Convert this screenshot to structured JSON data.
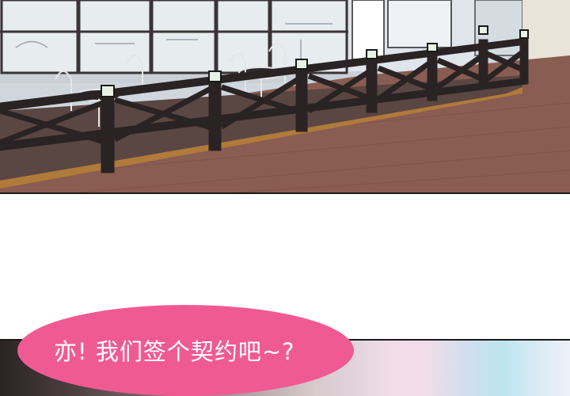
{
  "speech_bubble": {
    "text": "亦! 我们签个契约吧~?"
  },
  "colors": {
    "bubble": "#f05a92",
    "bubble_text": "#ffffff",
    "panel_border": "#1a1a1a",
    "pavement": "#8a5d52",
    "fence": "#2a2324",
    "deck_edge": "#b07a3a"
  },
  "scene": {
    "top_panel": "cafe-terrace-with-fence",
    "bottom_panel": "partial-next-panel"
  }
}
